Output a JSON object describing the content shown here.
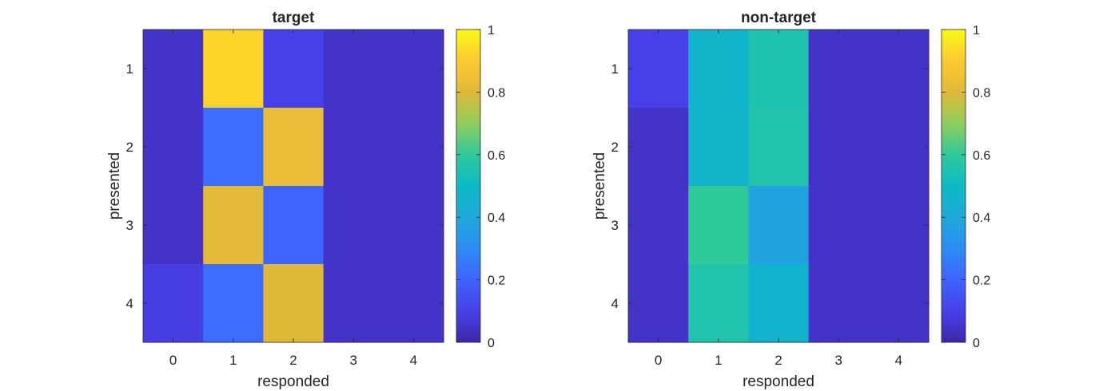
{
  "chart_data": [
    {
      "type": "heatmap",
      "title": "target",
      "xlabel": "responded",
      "ylabel": "presented",
      "x": [
        0,
        1,
        2,
        3,
        4
      ],
      "y": [
        1,
        2,
        3,
        4
      ],
      "values": [
        [
          0.05,
          0.92,
          0.1,
          0.05,
          0.05
        ],
        [
          0.05,
          0.22,
          0.83,
          0.05,
          0.05
        ],
        [
          0.05,
          0.81,
          0.2,
          0.05,
          0.05
        ],
        [
          0.09,
          0.22,
          0.8,
          0.05,
          0.05
        ]
      ],
      "clim": [
        0,
        1
      ],
      "colorbar_ticks": [
        "0",
        "0.2",
        "0.4",
        "0.6",
        "0.8",
        "1"
      ],
      "colormap": "parula"
    },
    {
      "type": "heatmap",
      "title": "non-target",
      "xlabel": "responded",
      "ylabel": "presented",
      "x": [
        0,
        1,
        2,
        3,
        4
      ],
      "y": [
        1,
        2,
        3,
        4
      ],
      "values": [
        [
          0.1,
          0.47,
          0.55,
          0.05,
          0.05
        ],
        [
          0.05,
          0.47,
          0.56,
          0.05,
          0.05
        ],
        [
          0.05,
          0.6,
          0.38,
          0.05,
          0.05
        ],
        [
          0.05,
          0.56,
          0.46,
          0.05,
          0.05
        ]
      ],
      "clim": [
        0,
        1
      ],
      "colorbar_ticks": [
        "0",
        "0.2",
        "0.4",
        "0.6",
        "0.8",
        "1"
      ],
      "colormap": "parula"
    }
  ]
}
